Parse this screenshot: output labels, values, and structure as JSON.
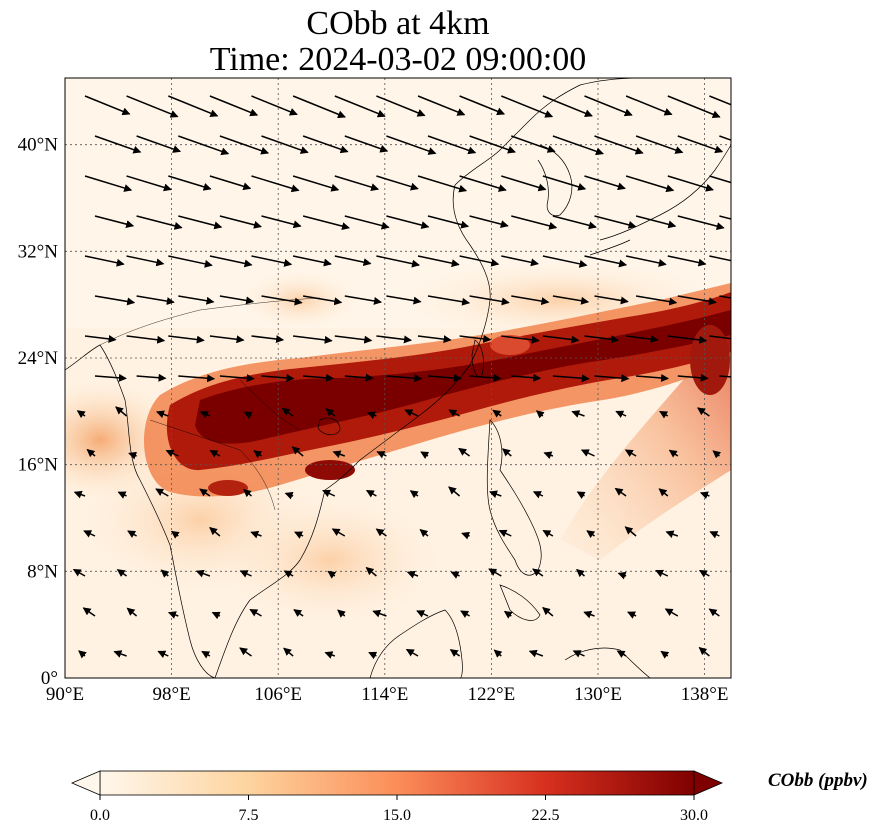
{
  "title": {
    "line1": "CObb at 4km",
    "line2": "Time: 2024-03-02 09:00:00"
  },
  "axes": {
    "lon_ticks": [
      "90°E",
      "98°E",
      "106°E",
      "114°E",
      "122°E",
      "130°E",
      "138°E"
    ],
    "lat_ticks": [
      "0°",
      "8°N",
      "16°N",
      "24°N",
      "32°N",
      "40°N"
    ],
    "lon_range": [
      90,
      140
    ],
    "lat_range": [
      0,
      45
    ]
  },
  "colorbar": {
    "label": "CObb (ppbv)",
    "ticks": [
      "0.0",
      "7.5",
      "15.0",
      "22.5",
      "30.0"
    ],
    "range": [
      0,
      30
    ],
    "colormap": "OrRd",
    "colors": [
      "#fff7ec",
      "#fdd49e",
      "#fc8d59",
      "#d7301f",
      "#7f0000"
    ],
    "extend": "both"
  },
  "map_features": {
    "plume": "dense CObb plume stretching from Southeast Asia across southern China, Taiwan and the western Pacific at about 18-28°N",
    "background": "low concentrations over the South China Sea, Philippines and Indochina",
    "vectors": "wind arrows blowing from west/northwest toward the east/southeast in the north, and weak easterlies in the south",
    "gridlines": "dotted at every 8 degrees"
  }
}
